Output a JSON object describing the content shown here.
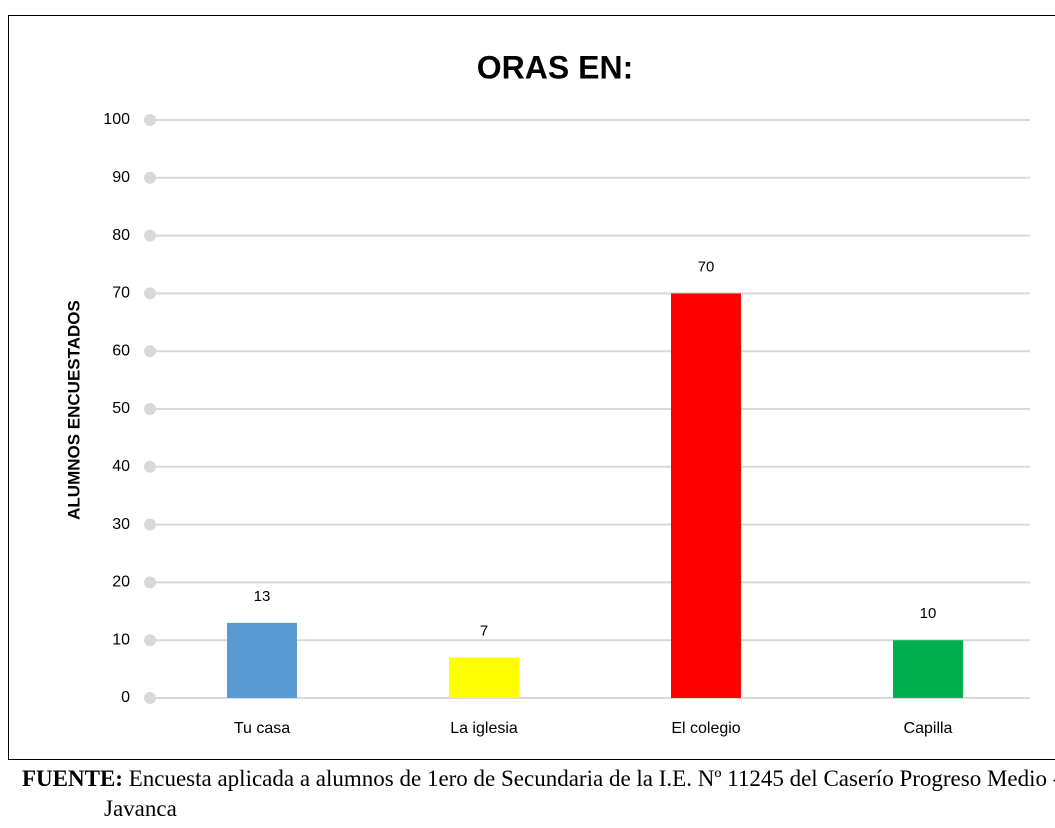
{
  "chart_data": {
    "type": "bar",
    "title": "ORAS EN:",
    "y_label": "ALUMNOS ENCUESTADOS",
    "categories": [
      "Tu casa",
      "La iglesia",
      "El colegio",
      "Capilla"
    ],
    "values": [
      13,
      7,
      70,
      10
    ],
    "colors": [
      "#5b9bd5",
      "#ffff00",
      "#ff0000",
      "#00b050"
    ],
    "ylim": [
      0,
      100
    ],
    "yticks": [
      0,
      10,
      20,
      30,
      40,
      50,
      60,
      70,
      80,
      90,
      100
    ],
    "grid": true
  },
  "source": {
    "label": "FUENTE:",
    "text": "Encuesta aplicada a alumnos de 1ero de Secundaria de la I.E. Nº 11245 del Caserío Progreso Medio - Javanca"
  }
}
